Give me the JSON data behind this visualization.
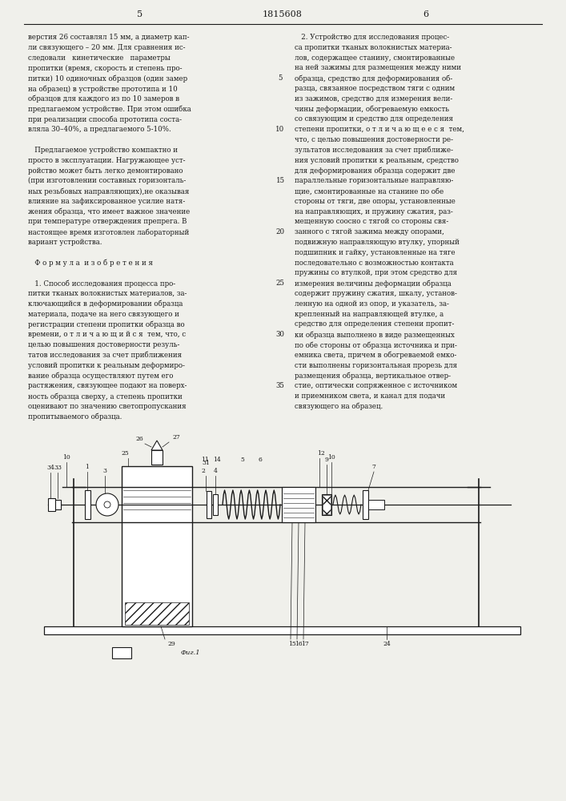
{
  "page_number_left": "5",
  "patent_number": "1815608",
  "page_number_right": "6",
  "background_color": "#f0f0eb",
  "text_color": "#1a1a1a",
  "left_col": [
    "верстия 26 составлял 15 мм, а диаметр кап-",
    "ли связующего – 20 мм. Для сравнения ис-",
    "следовали   кинетические   параметры",
    "пропитки (время, скорость и степень про-",
    "питки) 10 одиночных образцов (один замер",
    "на образец) в устройстве прототипа и 10",
    "образцов для каждого из по 10 замеров в",
    "предлагаемом устройстве. При этом ошибка",
    "при реализации способа прототипа соста-",
    "вляла 30–40%, а предлагаемого 5-10%.",
    "",
    "   Предлагаемое устройство компактно и",
    "просто в эксплуатации. Нагружающее уст-",
    "ройство может быть легко демонтировано",
    "(при изготовлении составных горизонталь-",
    "ных резьбовых направляющих),не оказывая",
    "влияние на зафиксированное усилие натя-",
    "жения образца, что имеет важное значение",
    "при температуре отверждения препрега. В",
    "настоящее время изготовлен лабораторный",
    "вариант устройства.",
    "",
    "   Ф о р м у л а  и з о б р е т е н и я",
    "",
    "   1. Способ исследования процесса про-",
    "питки тканых волокнистых материалов, за-",
    "ключающийся в деформировании образца",
    "материала, подаче на него связующего и",
    "регистрации степени пропитки образца во",
    "времени, о т л и ч а ю щ и й с я  тем, что, с",
    "целью повышения достоверности резуль-",
    "татов исследования за счет приближения",
    "условий пропитки к реальным деформиро-",
    "вание образца осуществляют путем его",
    "растяжения, связующее подают на поверх-",
    "ность образца сверху, а степень пропитки",
    "оценивают по значению светопропускания",
    "пропитываемого образца."
  ],
  "right_col": [
    "   2. Устройство для исследования процес-",
    "са пропитки тканых волокнистых материа-",
    "лов, содержащее станину, смонтированные",
    "на ней зажимы для размещения между ними",
    "образца, средство для деформирования об-",
    "разца, связанное посредством тяги с одним",
    "из зажимов, средство для измерения вели-",
    "чины деформации, обогреваемую емкость",
    "со связующим и средство для определения",
    "степени пропитки, о т л и ч а ю щ е е с я  тем,",
    "что, с целью повышения достоверности ре-",
    "зультатов исследования за счет приближе-",
    "ния условий пропитки к реальным, средство",
    "для деформирования образца содержит две",
    "параллельные горизонтальные направляю-",
    "щие, смонтированные на станине по обе",
    "стороны от тяги, две опоры, установленные",
    "на направляющих, и пружину сжатия, раз-",
    "мещенную соосно с тягой со стороны свя-",
    "занного с тягой зажима между опорами,",
    "подвижную направляющую втулку, упорный",
    "подшипник и гайку, установленные на тяге",
    "последовательно с возможностью контакта",
    "пружины со втулкой, при этом средство для",
    "измерения величины деформации образца",
    "содержит пружину сжатия, шкалу, установ-",
    "ленную на одной из опор, и указатель, за-",
    "крепленный на направляющей втулке, а",
    "средство для определения степени пропит-",
    "ки образца выполнено в виде размещенных",
    "по обе стороны от образца источника и при-",
    "емника света, причем в обогреваемой емко-",
    "сти выполнены горизонтальная прорезь для",
    "размещения образца, вертикальное отвер-",
    "стие, оптически сопряженное с источником",
    "и приемником света, и канал для подачи",
    "связующего на образец."
  ],
  "line_numbers": [
    5,
    10,
    15,
    20,
    25,
    30,
    35
  ]
}
